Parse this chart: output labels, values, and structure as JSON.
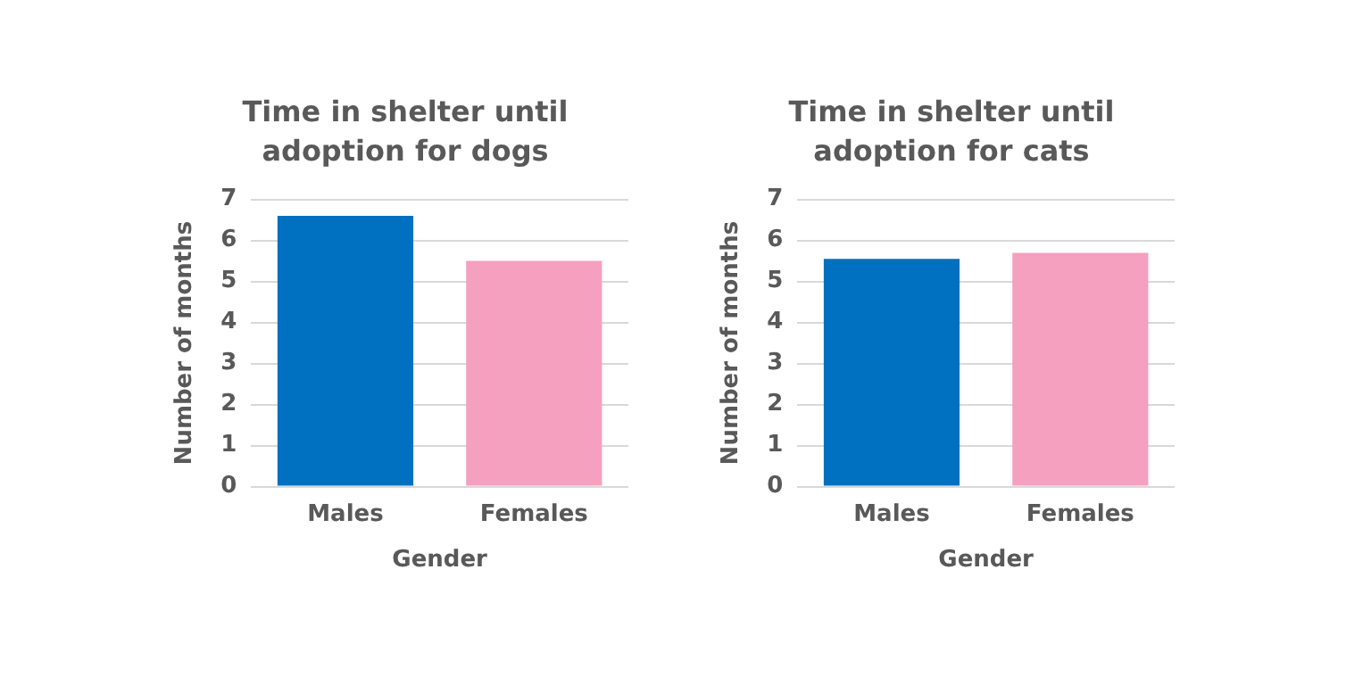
{
  "chart_data": [
    {
      "type": "bar",
      "title": "Time in shelter until adoption for dogs",
      "xlabel": "Gender",
      "ylabel": "Number of months",
      "categories": [
        "Males",
        "Females"
      ],
      "values": [
        6.6,
        5.5
      ],
      "colors": [
        "#0070c0",
        "#f4a0be"
      ],
      "ylim": [
        0,
        7
      ],
      "yticks": [
        0,
        1,
        2,
        3,
        4,
        5,
        6,
        7
      ],
      "grid": "y",
      "legend": false
    },
    {
      "type": "bar",
      "title": "Time in shelter until adoption for cats",
      "xlabel": "Gender",
      "ylabel": "Number of months",
      "categories": [
        "Males",
        "Females"
      ],
      "values": [
        5.55,
        5.7
      ],
      "colors": [
        "#0070c0",
        "#f4a0be"
      ],
      "ylim": [
        0,
        7
      ],
      "yticks": [
        0,
        1,
        2,
        3,
        4,
        5,
        6,
        7
      ],
      "grid": "y",
      "legend": false
    }
  ]
}
